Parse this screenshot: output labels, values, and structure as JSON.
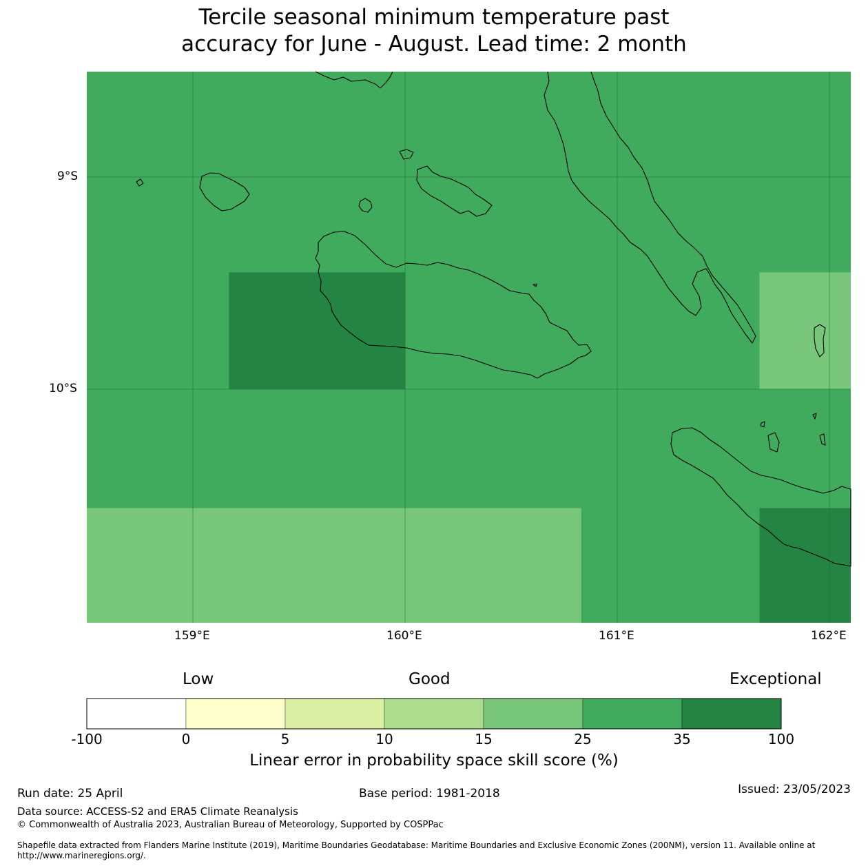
{
  "title_line1": "Tercile seasonal minimum temperature past",
  "title_line2": "accuracy for June - August. Lead time: 2 month",
  "map": {
    "lat_labels": [
      "9°S",
      "10°S"
    ],
    "lon_labels": [
      "159°E",
      "160°E",
      "161°E",
      "162°E"
    ],
    "base_color": "#41ab5d",
    "cells": [
      {
        "lon": [
          159.17,
          160.0
        ],
        "lat": [
          -9.45,
          -10.0
        ],
        "color": "#238443",
        "category": "35 to 100"
      },
      {
        "lon": [
          161.67,
          162.1
        ],
        "lat": [
          -9.45,
          -10.0
        ],
        "color": "#78c679",
        "category": "15 to 25"
      },
      {
        "lon": [
          158.5,
          160.83
        ],
        "lat": [
          -10.56,
          -11.1
        ],
        "color": "#78c679",
        "category": "15 to 25"
      },
      {
        "lon": [
          161.67,
          162.1
        ],
        "lat": [
          -10.56,
          -11.1
        ],
        "color": "#238443",
        "category": "35 to 100"
      }
    ]
  },
  "colorbar": {
    "headers": [
      "Low",
      "Good",
      "Exceptional"
    ],
    "ticks": [
      "-100",
      "0",
      "5",
      "10",
      "15",
      "25",
      "35",
      "100"
    ],
    "colors": [
      "#ffffff",
      "#ffffcc",
      "#d9f0a3",
      "#addd8e",
      "#78c679",
      "#41ab5d",
      "#238443"
    ],
    "label": "Linear error in probability space skill score (%)"
  },
  "footer": {
    "run_date": "Run date: 25 April",
    "base_period": "Base period: 1981-2018",
    "issued": "Issued: 23/05/2023",
    "data_source": "Data source: ACCESS-S2 and ERA5 Climate Reanalysis",
    "copyright": "© Commonwealth of Australia 2023, Australian Bureau of Meteorology, Supported by COSPPac",
    "shapefile_line1": "Shapefile data extracted from Flanders Marine Institute (2019), Maritime Boundaries Geodatabase: Maritime Boundaries and Exclusive Economic Zones (200NM), version 11. Available online at",
    "shapefile_line2": "http://www.marineregions.org/."
  }
}
